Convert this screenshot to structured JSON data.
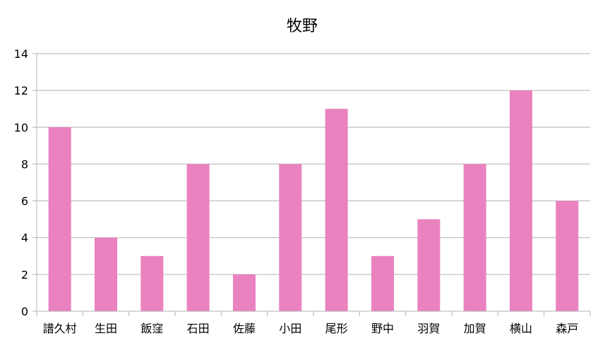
{
  "chart_data": {
    "type": "bar",
    "title": "牧野",
    "xlabel": "",
    "ylabel": "",
    "categories": [
      "譜久村",
      "生田",
      "飯窪",
      "石田",
      "佐藤",
      "小田",
      "尾形",
      "野中",
      "羽賀",
      "加賀",
      "横山",
      "森戸"
    ],
    "values": [
      10,
      4,
      3,
      8,
      2,
      8,
      11,
      3,
      5,
      8,
      12,
      6
    ],
    "ylim": [
      0,
      14
    ],
    "yticks": [
      0,
      2,
      4,
      6,
      8,
      10,
      12,
      14
    ],
    "grid": true,
    "legend": "none",
    "bar_color": "#ea82c0",
    "grid_color": "#b3b3b3"
  }
}
